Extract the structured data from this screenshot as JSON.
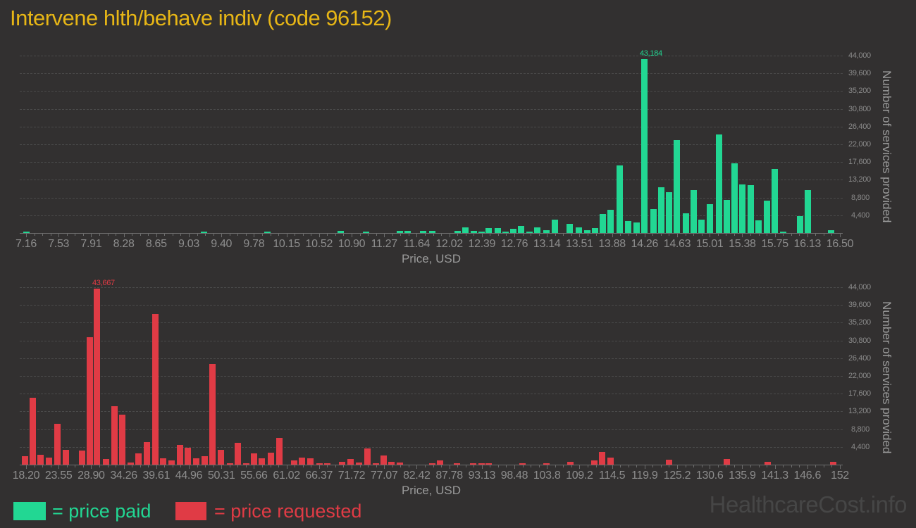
{
  "page": {
    "title": "Intervene hlth/behave indiv (code 96152)",
    "watermark": "HealthcareCost.info"
  },
  "legend": {
    "paid_label": "= price paid",
    "requested_label": "= price requested"
  },
  "colors": {
    "background": "#323030",
    "title": "#e7b616",
    "paid": "#22d793",
    "requested": "#e03b45",
    "axis_text": "#8d8d8d",
    "axis_title_text": "#9a9a9a",
    "grid": "#4a4a4a",
    "watermark": "#464646"
  },
  "chart_data": [
    {
      "type": "bar",
      "series_name": "price paid",
      "color_key": "paid",
      "xlabel": "Price, USD",
      "ylabel": "Number of services provided",
      "grid": true,
      "legend_position": "bottom-left",
      "xlim": [
        7.16,
        16.5
      ],
      "ylim": [
        0,
        46200
      ],
      "x_tick_labels": [
        "7.16",
        "7.53",
        "7.91",
        "8.28",
        "8.65",
        "9.03",
        "9.40",
        "9.78",
        "10.15",
        "10.52",
        "10.90",
        "11.27",
        "11.64",
        "12.02",
        "12.39",
        "12.76",
        "13.14",
        "13.51",
        "13.88",
        "14.26",
        "14.63",
        "15.01",
        "15.38",
        "15.75",
        "16.13",
        "16.50"
      ],
      "y_tick_labels": [
        "4,400",
        "8,800",
        "13,200",
        "17,600",
        "22,000",
        "26,400",
        "30,800",
        "35,200",
        "39,600",
        "44,000"
      ],
      "max_label": "43,184",
      "points": [
        [
          7.16,
          400
        ],
        [
          9.2,
          400
        ],
        [
          9.93,
          400
        ],
        [
          10.77,
          500
        ],
        [
          11.06,
          400
        ],
        [
          11.45,
          450
        ],
        [
          11.54,
          500
        ],
        [
          11.72,
          450
        ],
        [
          11.82,
          550
        ],
        [
          12.11,
          450
        ],
        [
          12.2,
          1350
        ],
        [
          12.3,
          600
        ],
        [
          12.39,
          410
        ],
        [
          12.47,
          1230
        ],
        [
          12.57,
          1230
        ],
        [
          12.66,
          350
        ],
        [
          12.75,
          990
        ],
        [
          12.84,
          1810
        ],
        [
          12.94,
          410
        ],
        [
          13.03,
          1400
        ],
        [
          13.13,
          640
        ],
        [
          13.23,
          3270
        ],
        [
          13.4,
          2280
        ],
        [
          13.5,
          1460
        ],
        [
          13.6,
          760
        ],
        [
          13.69,
          1290
        ],
        [
          13.78,
          4790
        ],
        [
          13.87,
          5730
        ],
        [
          13.97,
          16700
        ],
        [
          14.07,
          3000
        ],
        [
          14.17,
          2600
        ],
        [
          14.26,
          43184
        ],
        [
          14.36,
          5890
        ],
        [
          14.45,
          11300
        ],
        [
          14.54,
          10080
        ],
        [
          14.63,
          23000
        ],
        [
          14.73,
          4850
        ],
        [
          14.82,
          10680
        ],
        [
          14.91,
          3390
        ],
        [
          15.01,
          7120
        ],
        [
          15.11,
          24500
        ],
        [
          15.2,
          8170
        ],
        [
          15.29,
          17330
        ],
        [
          15.38,
          11970
        ],
        [
          15.48,
          11790
        ],
        [
          15.57,
          3220
        ],
        [
          15.66,
          8000
        ],
        [
          15.75,
          15930
        ],
        [
          15.85,
          400
        ],
        [
          16.04,
          4200
        ],
        [
          16.13,
          10700
        ],
        [
          16.4,
          700
        ]
      ]
    },
    {
      "type": "bar",
      "series_name": "price requested",
      "color_key": "requested",
      "xlabel": "Price, USD",
      "ylabel": "Number of services provided",
      "grid": true,
      "legend_position": "bottom-left",
      "xlim": [
        18.2,
        152
      ],
      "ylim": [
        0,
        46200
      ],
      "x_tick_labels": [
        "18.20",
        "23.55",
        "28.90",
        "34.26",
        "39.61",
        "44.96",
        "50.31",
        "55.66",
        "61.02",
        "66.37",
        "71.72",
        "77.07",
        "82.42",
        "87.78",
        "93.13",
        "98.48",
        "103.8",
        "109.2",
        "114.5",
        "119.9",
        "125.2",
        "130.6",
        "135.9",
        "141.3",
        "146.6",
        "152"
      ],
      "y_tick_labels": [
        "4,400",
        "8,800",
        "13,200",
        "17,600",
        "22,000",
        "26,400",
        "30,800",
        "35,200",
        "39,600",
        "44,000"
      ],
      "max_label": "43,667",
      "points": [
        [
          18.0,
          2050
        ],
        [
          19.3,
          16540
        ],
        [
          20.6,
          2450
        ],
        [
          22.0,
          1810
        ],
        [
          23.4,
          10110
        ],
        [
          24.7,
          3620
        ],
        [
          27.4,
          3500
        ],
        [
          28.7,
          31560
        ],
        [
          29.9,
          43667
        ],
        [
          31.4,
          1400
        ],
        [
          32.7,
          14550
        ],
        [
          34.0,
          12390
        ],
        [
          35.4,
          580
        ],
        [
          36.7,
          2800
        ],
        [
          38.1,
          5550
        ],
        [
          39.5,
          37280
        ],
        [
          40.7,
          1580
        ],
        [
          42.1,
          990
        ],
        [
          43.5,
          4850
        ],
        [
          44.8,
          4210
        ],
        [
          46.2,
          1520
        ],
        [
          47.6,
          2160
        ],
        [
          48.8,
          24950
        ],
        [
          50.2,
          3620
        ],
        [
          51.7,
          200
        ],
        [
          53.0,
          5500
        ],
        [
          54.4,
          290
        ],
        [
          55.7,
          2800
        ],
        [
          57.0,
          1520
        ],
        [
          58.4,
          2920
        ],
        [
          59.8,
          6720
        ],
        [
          62.3,
          1050
        ],
        [
          63.5,
          1750
        ],
        [
          65.0,
          1640
        ],
        [
          66.4,
          290
        ],
        [
          67.7,
          290
        ],
        [
          70.2,
          760
        ],
        [
          71.5,
          1460
        ],
        [
          72.9,
          580
        ],
        [
          74.3,
          4090
        ],
        [
          75.7,
          410
        ],
        [
          77.0,
          2340
        ],
        [
          78.3,
          700
        ],
        [
          79.7,
          580
        ],
        [
          85.0,
          175
        ],
        [
          86.3,
          990
        ],
        [
          89.0,
          175
        ],
        [
          91.7,
          290
        ],
        [
          93.1,
          410
        ],
        [
          94.3,
          290
        ],
        [
          99.8,
          175
        ],
        [
          103.7,
          290
        ],
        [
          107.7,
          760
        ],
        [
          111.6,
          1050
        ],
        [
          112.9,
          3100
        ],
        [
          114.3,
          1750
        ],
        [
          123.9,
          1170
        ],
        [
          133.4,
          1460
        ],
        [
          140.1,
          760
        ],
        [
          150.9,
          760
        ]
      ]
    }
  ]
}
